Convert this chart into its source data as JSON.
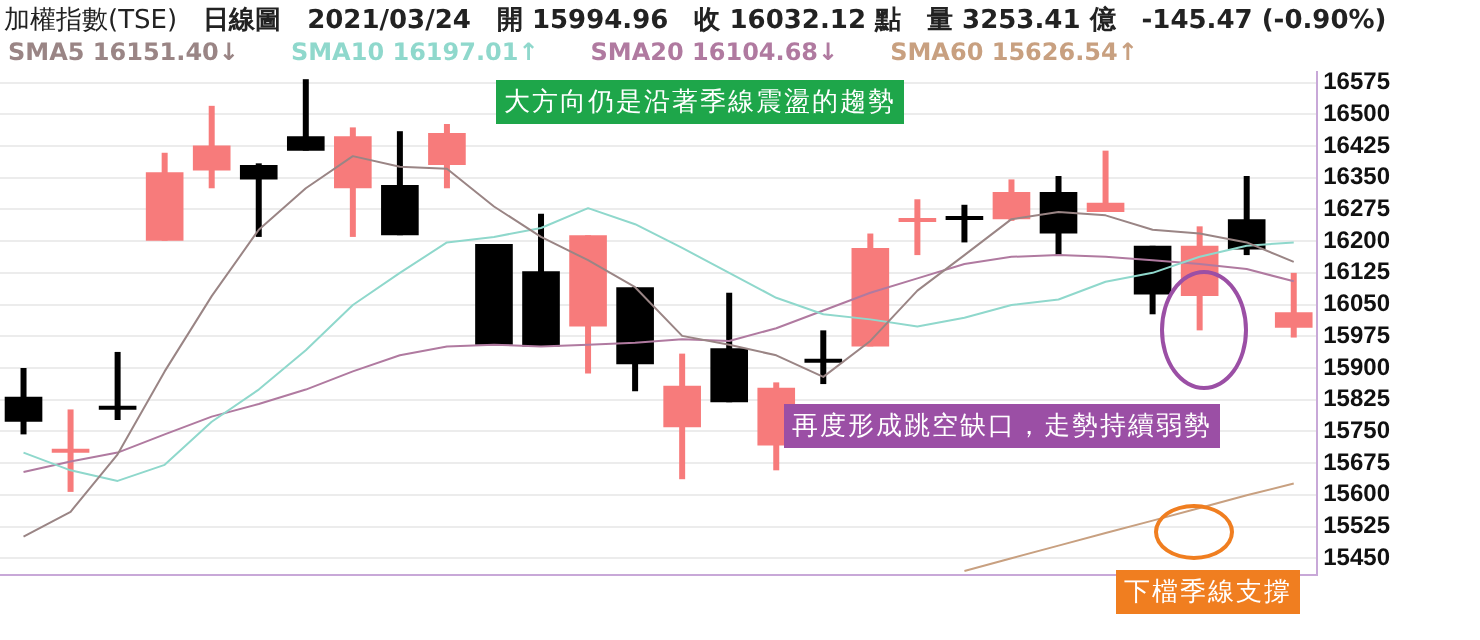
{
  "chart_data": {
    "type": "candlestick",
    "title": "加權指數(TSE)",
    "subtitle": "日線圖　2021/03/24　開 15994.96　收 16032.12 點　量 3253.41 億　-145.47 (-0.90%)",
    "categories": [
      null,
      null,
      null,
      null,
      null,
      null,
      null,
      null,
      null,
      null,
      null,
      null,
      null,
      null,
      null,
      null,
      null,
      null,
      null,
      null,
      null,
      null,
      null,
      null,
      null,
      null,
      null,
      null
    ],
    "ohlc": [
      [
        15832,
        15900,
        15743,
        15773
      ],
      [
        15700,
        15802,
        15607,
        15709
      ],
      [
        15808,
        15938,
        15777,
        15804
      ],
      [
        16201,
        16409,
        16201,
        16363
      ],
      [
        16367,
        16520,
        16325,
        16426
      ],
      [
        16380,
        16384,
        16210,
        16346
      ],
      [
        16448,
        16583,
        16414,
        16414
      ],
      [
        16325,
        16469,
        16210,
        16448
      ],
      [
        16333,
        16460,
        16214,
        16214
      ],
      [
        16380,
        16477,
        16325,
        16456
      ],
      [
        16193,
        16193,
        15955,
        15955
      ],
      [
        16129,
        16265,
        15951,
        15951
      ],
      [
        15998,
        16214,
        15887,
        16214
      ],
      [
        16091,
        16091,
        15845,
        15909
      ],
      [
        15760,
        15934,
        15637,
        15858
      ],
      [
        15947,
        16078,
        15819,
        15819
      ],
      [
        15717,
        15866,
        15658,
        15853
      ],
      [
        15919,
        15989,
        15862,
        15915
      ],
      [
        15951,
        16218,
        15951,
        16184
      ],
      [
        16248,
        16299,
        16167,
        16252
      ],
      [
        16257,
        16286,
        16197,
        16253
      ],
      [
        16252,
        16346,
        16248,
        16316
      ],
      [
        16316,
        16354,
        16167,
        16218
      ],
      [
        16269,
        16414,
        16269,
        16291
      ],
      [
        16189,
        16189,
        16027,
        16074
      ],
      [
        16070,
        16235,
        15989,
        16189
      ],
      [
        16252,
        16354,
        16167,
        16180
      ],
      [
        15995,
        16125,
        15972,
        16032
      ]
    ],
    "colors": [
      "#000000",
      "#f77b7b",
      "#000000",
      "#f77b7b",
      "#f77b7b",
      "#000000",
      "#000000",
      "#f77b7b",
      "#000000",
      "#f77b7b",
      "#000000",
      "#000000",
      "#f77b7b",
      "#000000",
      "#f77b7b",
      "#000000",
      "#f77b7b",
      "#000000",
      "#f77b7b",
      "#f77b7b",
      "#000000",
      "#f77b7b",
      "#000000",
      "#f77b7b",
      "#000000",
      "#f77b7b",
      "#000000",
      "#f77b7b"
    ],
    "series": [
      {
        "type": "line",
        "name": "SMA5 16151.40↓",
        "color": "#9a8585",
        "values": [
          15501,
          15560,
          15696,
          15892,
          16070,
          16227,
          16325,
          16401,
          16376,
          16371,
          16282,
          16210,
          16155,
          16091,
          15976,
          15955,
          15930,
          15879,
          15964,
          16083,
          16167,
          16252,
          16269,
          16261,
          16227,
          16218,
          16197,
          16151
        ]
      },
      {
        "type": "line",
        "name": "SMA10 16197.01↑",
        "color": "#8fd8cc",
        "values": [
          15700,
          15658,
          15633,
          15671,
          15773,
          15849,
          15942,
          16049,
          16125,
          16197,
          16210,
          16231,
          16278,
          16240,
          16184,
          16125,
          16066,
          16027,
          16015,
          15998,
          16019,
          16049,
          16062,
          16104,
          16125,
          16163,
          16189,
          16197
        ]
      },
      {
        "type": "line",
        "name": "SMA20 16104.68↓",
        "color": "#b07aa0",
        "values": [
          15654,
          15679,
          15700,
          15743,
          15785,
          15815,
          15849,
          15892,
          15930,
          15951,
          15955,
          15951,
          15955,
          15960,
          15968,
          15964,
          15994,
          16036,
          16078,
          16112,
          16146,
          16163,
          16167,
          16163,
          16155,
          16146,
          16134,
          16105
        ]
      },
      {
        "type": "line",
        "name": "SMA60 15626.54↑",
        "color": "#c8a080",
        "values": [
          null,
          null,
          null,
          null,
          null,
          null,
          null,
          null,
          null,
          null,
          null,
          null,
          null,
          null,
          null,
          null,
          null,
          null,
          null,
          null,
          15420,
          15450,
          15480,
          15510,
          15539,
          15569,
          15599,
          15627
        ]
      }
    ],
    "ylim": [
      15410,
      16600
    ],
    "yticks": [
      15450,
      15525,
      15600,
      15675,
      15750,
      15825,
      15900,
      15975,
      16050,
      16125,
      16200,
      16275,
      16350,
      16425,
      16500,
      16575
    ],
    "grid": "y",
    "legend": "top left",
    "annotations": [
      "大方向仍是沿著季線震盪的趨勢",
      "再度形成跳空缺口，走勢持續弱勢",
      "下檔季線支撐"
    ]
  }
}
